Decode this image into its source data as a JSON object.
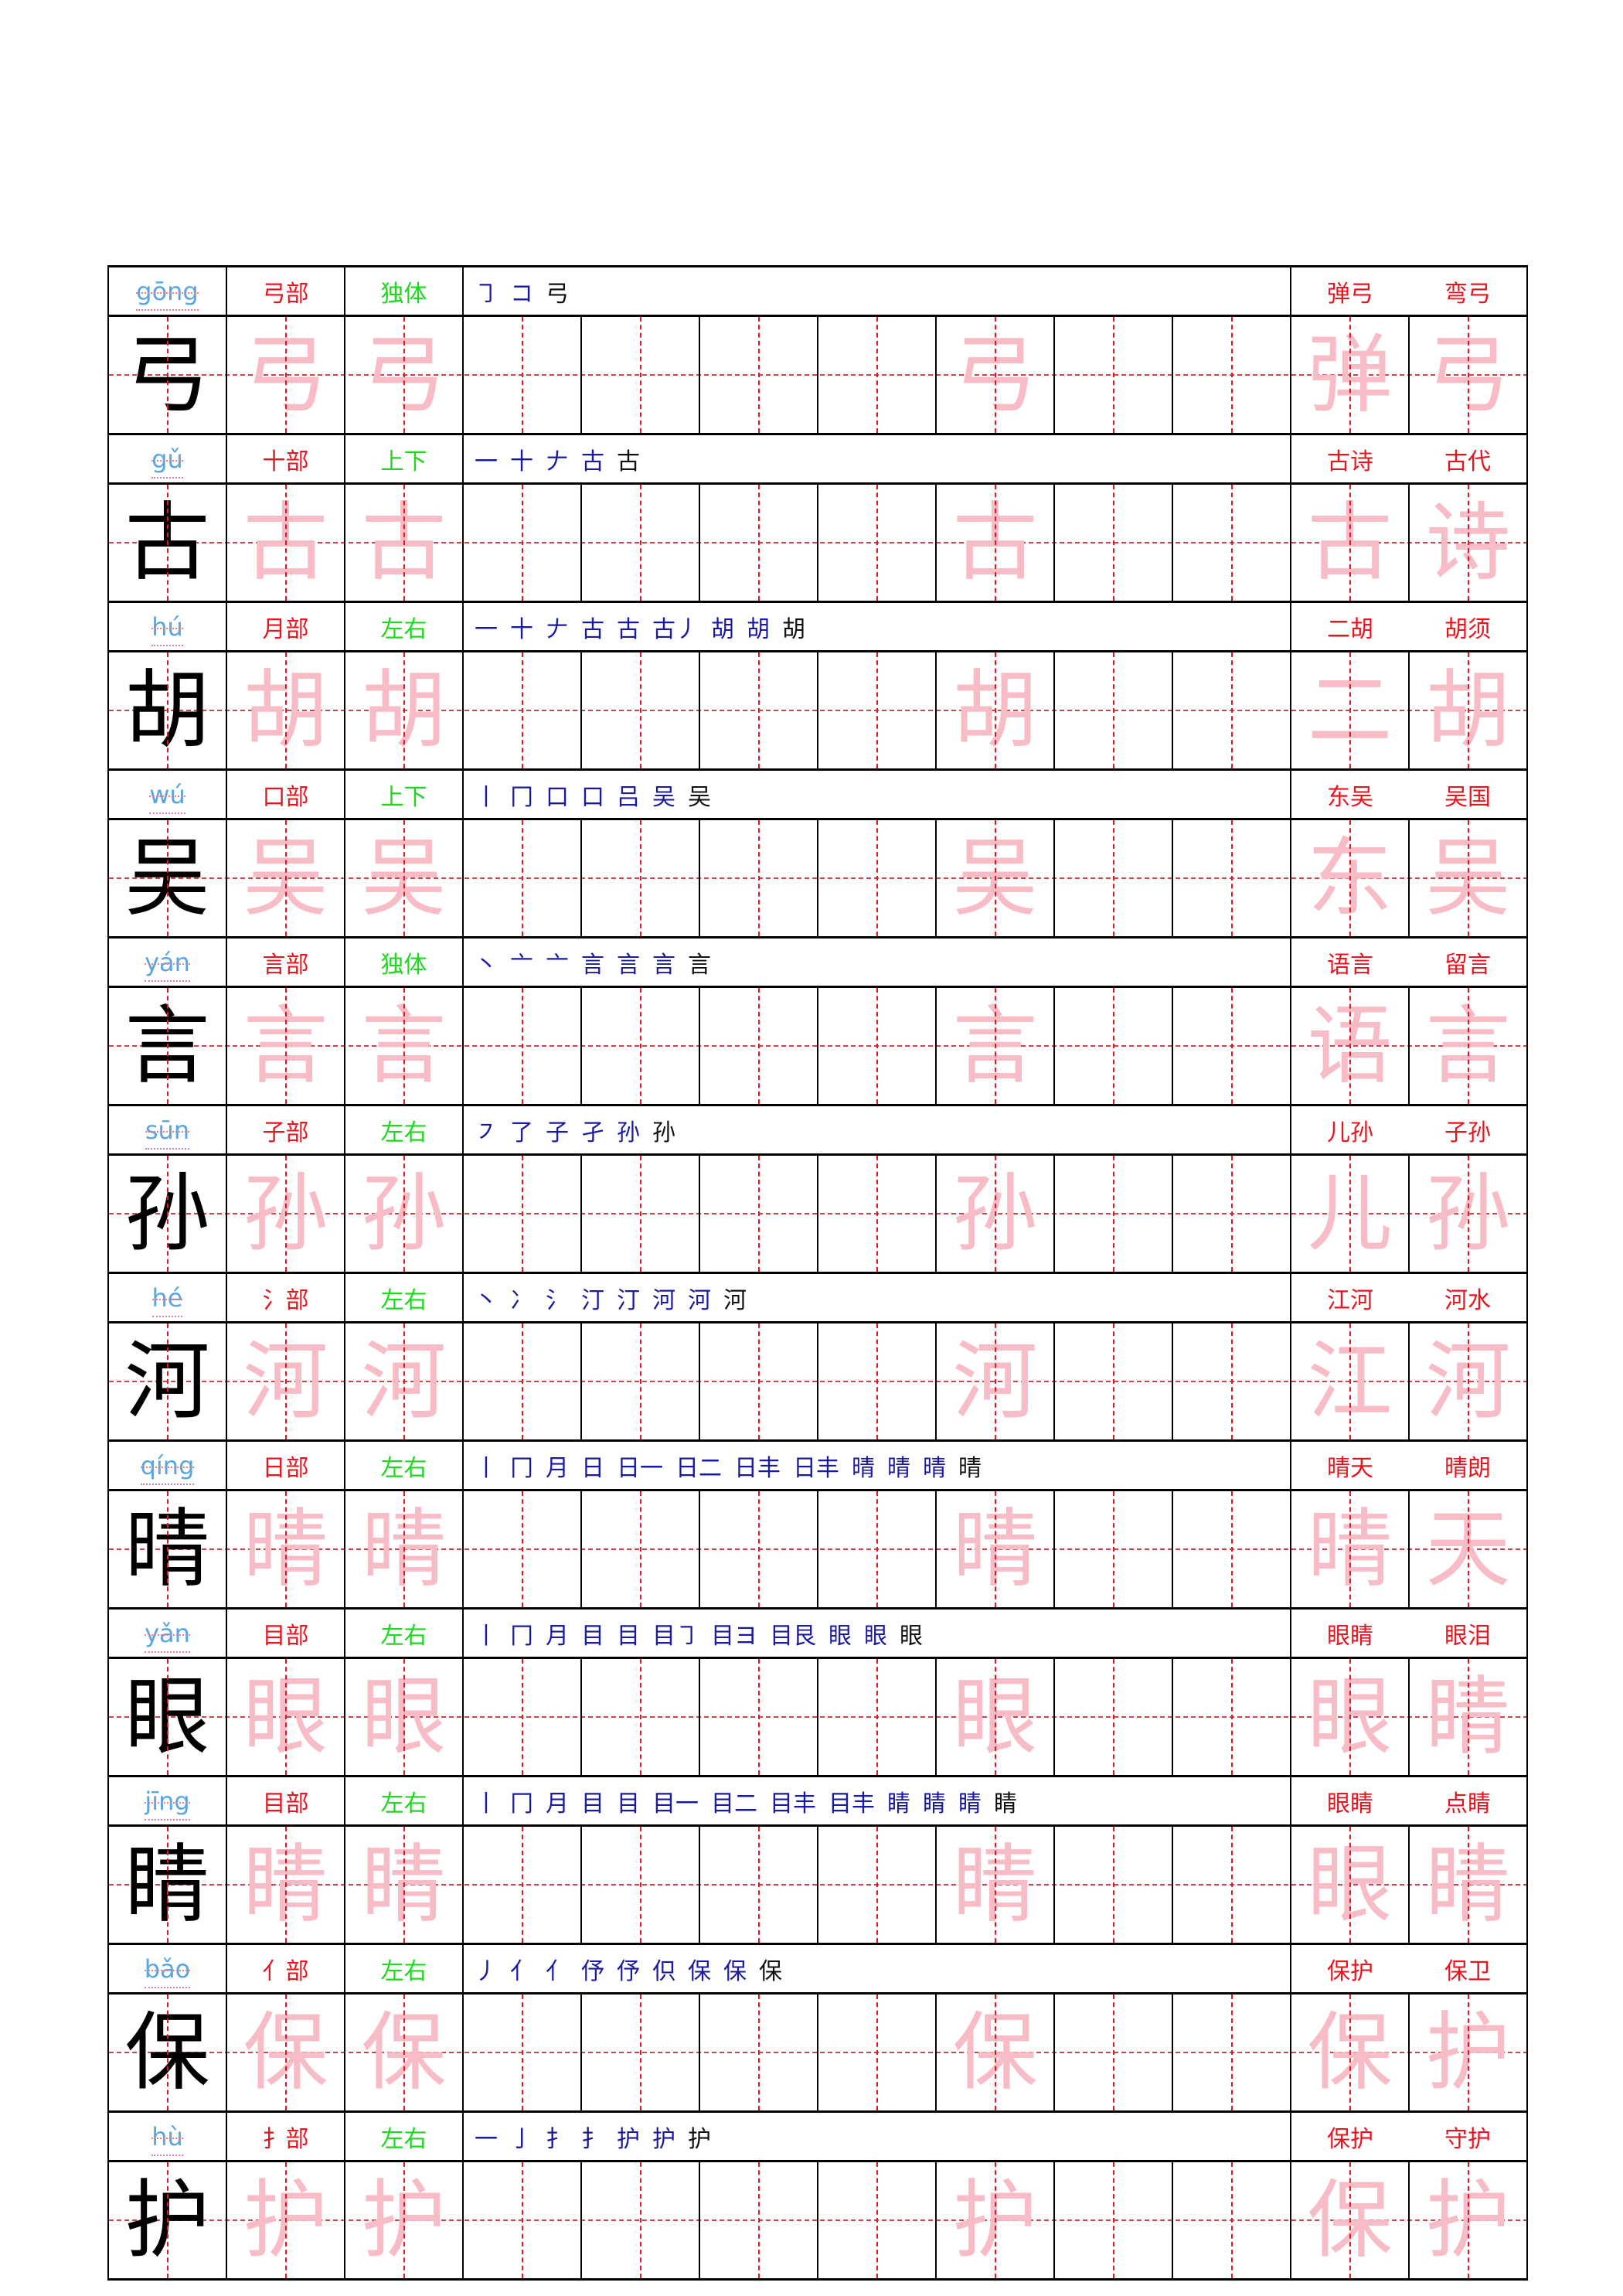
{
  "colors": {
    "pinyin": "#5aa6e0",
    "radical": "#e8141e",
    "structure": "#1ed81e",
    "trace": "#f7bcc6",
    "grid": "#e8141e"
  },
  "rows": [
    {
      "char": "弓",
      "pinyin": "gōng",
      "radical": "弓部",
      "structure": "独体",
      "strokes": [
        "㇆",
        "コ",
        "弓"
      ],
      "words": [
        "弹弓",
        "弯弓"
      ],
      "word_trace": [
        "弹",
        "弓"
      ]
    },
    {
      "char": "古",
      "pinyin": "gǔ",
      "radical": "十部",
      "structure": "上下",
      "strokes": [
        "一",
        "十",
        "𠂇",
        "古",
        "古"
      ],
      "words": [
        "古诗",
        "古代"
      ],
      "word_trace": [
        "古",
        "诗"
      ]
    },
    {
      "char": "胡",
      "pinyin": "hú",
      "radical": "月部",
      "structure": "左右",
      "strokes": [
        "一",
        "十",
        "𠂇",
        "古",
        "古",
        "古丿",
        "胡",
        "胡",
        "胡"
      ],
      "words": [
        "二胡",
        "胡须"
      ],
      "word_trace": [
        "二",
        "胡"
      ]
    },
    {
      "char": "吴",
      "pinyin": "wú",
      "radical": "口部",
      "structure": "上下",
      "strokes": [
        "丨",
        "冂",
        "口",
        "口",
        "吕",
        "吴",
        "吴"
      ],
      "words": [
        "东吴",
        "吴国"
      ],
      "word_trace": [
        "东",
        "吴"
      ]
    },
    {
      "char": "言",
      "pinyin": "yán",
      "radical": "言部",
      "structure": "独体",
      "strokes": [
        "丶",
        "亠",
        "亠",
        "言",
        "言",
        "言",
        "言"
      ],
      "words": [
        "语言",
        "留言"
      ],
      "word_trace": [
        "语",
        "言"
      ]
    },
    {
      "char": "孙",
      "pinyin": "sūn",
      "radical": "子部",
      "structure": "左右",
      "strokes": [
        "㇇",
        "了",
        "子",
        "孑",
        "孙",
        "孙"
      ],
      "words": [
        "儿孙",
        "子孙"
      ],
      "word_trace": [
        "儿",
        "孙"
      ]
    },
    {
      "char": "河",
      "pinyin": "hé",
      "radical": "氵部",
      "structure": "左右",
      "strokes": [
        "丶",
        "冫",
        "氵",
        "汀",
        "汀",
        "河",
        "河",
        "河"
      ],
      "words": [
        "江河",
        "河水"
      ],
      "word_trace": [
        "江",
        "河"
      ]
    },
    {
      "char": "晴",
      "pinyin": "qíng",
      "radical": "日部",
      "structure": "左右",
      "strokes": [
        "丨",
        "冂",
        "月",
        "日",
        "日一",
        "日二",
        "日丰",
        "日丰",
        "晴",
        "晴",
        "晴",
        "晴"
      ],
      "words": [
        "晴天",
        "晴朗"
      ],
      "word_trace": [
        "晴",
        "天"
      ]
    },
    {
      "char": "眼",
      "pinyin": "yǎn",
      "radical": "目部",
      "structure": "左右",
      "strokes": [
        "丨",
        "冂",
        "月",
        "目",
        "目",
        "目㇆",
        "目ヨ",
        "目艮",
        "眼",
        "眼",
        "眼"
      ],
      "words": [
        "眼睛",
        "眼泪"
      ],
      "word_trace": [
        "眼",
        "睛"
      ]
    },
    {
      "char": "睛",
      "pinyin": "jīng",
      "radical": "目部",
      "structure": "左右",
      "strokes": [
        "丨",
        "冂",
        "月",
        "目",
        "目",
        "目一",
        "目二",
        "目丰",
        "目丰",
        "睛",
        "睛",
        "睛",
        "睛"
      ],
      "words": [
        "眼睛",
        "点睛"
      ],
      "word_trace": [
        "眼",
        "睛"
      ]
    },
    {
      "char": "保",
      "pinyin": "bǎo",
      "radical": "亻部",
      "structure": "左右",
      "strokes": [
        "丿",
        "亻",
        "亻",
        "伃",
        "伃",
        "伿",
        "保",
        "保",
        "保"
      ],
      "words": [
        "保护",
        "保卫"
      ],
      "word_trace": [
        "保",
        "护"
      ]
    },
    {
      "char": "护",
      "pinyin": "hù",
      "radical": "扌部",
      "structure": "左右",
      "strokes": [
        "一",
        "亅",
        "扌",
        "扌",
        "护",
        "护",
        "护"
      ],
      "words": [
        "保护",
        "守护"
      ],
      "word_trace": [
        "保",
        "护"
      ]
    }
  ]
}
